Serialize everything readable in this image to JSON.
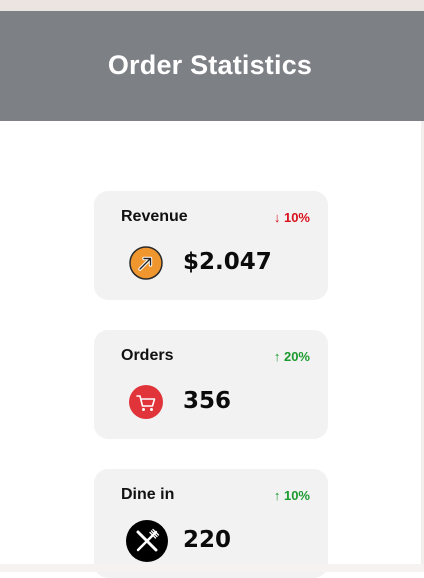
{
  "header": {
    "title": "Order Statistics"
  },
  "cards": [
    {
      "label": "Revenue",
      "trend": "↓ 10%",
      "trend_direction": "down",
      "value": "$2.047",
      "icon": "revenue-arrow-icon",
      "icon_color": "#f0962e"
    },
    {
      "label": "Orders",
      "trend": "↑ 20%",
      "trend_direction": "up",
      "value": "356",
      "icon": "cart-icon",
      "icon_color": "#e0343a"
    },
    {
      "label": "Dine in",
      "trend": "↑ 10%",
      "trend_direction": "up",
      "value": "220",
      "icon": "fork-knife-icon",
      "icon_color": "#000000"
    }
  ],
  "colors": {
    "header_bg": "#7d8085",
    "card_bg": "#f2f2f2",
    "trend_down": "#d90f1b",
    "trend_up": "#1c9a2e"
  }
}
